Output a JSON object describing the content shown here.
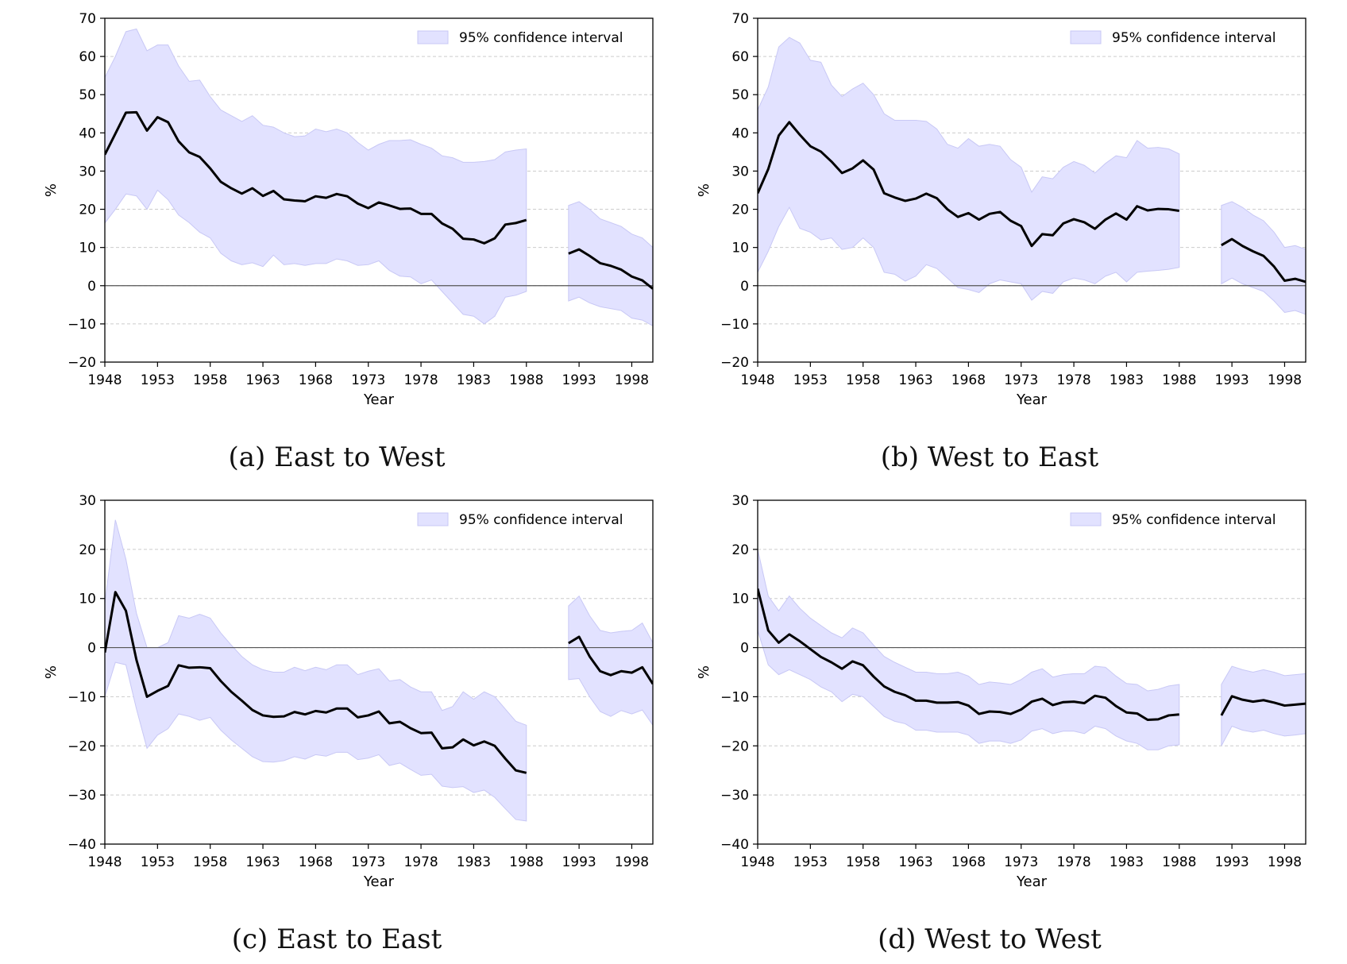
{
  "figure": {
    "panels": [
      {
        "caption": "(a) East to West"
      },
      {
        "caption": "(b) West to East"
      },
      {
        "caption": "(c) East to East"
      },
      {
        "caption": "(d) West to West"
      }
    ]
  },
  "chart_data": [
    {
      "type": "line",
      "caption": "(a) East to West",
      "xlabel": "Year",
      "ylabel": "%",
      "xlim": [
        1948,
        2000
      ],
      "ylim": [
        -20,
        70
      ],
      "yticks": [
        -20,
        -10,
        0,
        10,
        20,
        30,
        40,
        50,
        60,
        70
      ],
      "xticks": [
        "1948",
        "1953",
        "1958",
        "1963",
        "1968",
        "1973",
        "1978",
        "1983",
        "1988",
        "1993",
        "1998"
      ],
      "zero_line": true,
      "grid": "horizontal dashed",
      "legend": {
        "label": "95% confidence interval",
        "position": "top-right"
      },
      "colors": {
        "line": "#000000",
        "band": "#e2e2ff",
        "band_edge": "#c8c8f5",
        "grid": "#cccccc"
      },
      "series": [
        {
          "segment": 1,
          "x": [
            1948,
            1949,
            1950,
            1951,
            1952,
            1953,
            1954,
            1955,
            1956,
            1957,
            1958,
            1959,
            1960,
            1961,
            1962,
            1963,
            1964,
            1965,
            1966,
            1967,
            1968,
            1969,
            1970,
            1971,
            1972,
            1973,
            1974,
            1975,
            1976,
            1977,
            1978,
            1979,
            1980,
            1981,
            1982,
            1983,
            1984,
            1985,
            1986,
            1987,
            1988
          ],
          "y": [
            34.3,
            39.8,
            45.3,
            45.4,
            40.6,
            44.1,
            42.8,
            37.8,
            34.9,
            33.7,
            30.7,
            27.2,
            25.5,
            24.1,
            25.5,
            23.5,
            24.8,
            22.6,
            22.3,
            22.1,
            23.4,
            23.0,
            24.0,
            23.4,
            21.5,
            20.3,
            21.8,
            21.0,
            20.1,
            20.2,
            18.8,
            18.8,
            16.3,
            14.9,
            12.3,
            12.1,
            11.1,
            12.4,
            16.0,
            16.4,
            17.2
          ],
          "lower": [
            16.4,
            20.0,
            24.0,
            23.5,
            20.0,
            25.0,
            22.5,
            18.5,
            16.5,
            14.0,
            12.5,
            8.5,
            6.5,
            5.5,
            6.0,
            5.0,
            8.0,
            5.5,
            5.8,
            5.3,
            5.8,
            5.8,
            7.0,
            6.5,
            5.3,
            5.5,
            6.5,
            4.0,
            2.5,
            2.3,
            0.5,
            1.5,
            -1.5,
            -4.5,
            -7.5,
            -8.0,
            -10.0,
            -8.0,
            -3.0,
            -2.5,
            -1.5
          ],
          "upper": [
            54.5,
            60.0,
            66.5,
            67.2,
            61.5,
            63.0,
            63.0,
            57.5,
            53.5,
            53.8,
            49.5,
            46.0,
            44.5,
            43.0,
            44.5,
            42.0,
            41.5,
            40.0,
            39.0,
            39.2,
            41.0,
            40.3,
            41.0,
            40.0,
            37.5,
            35.5,
            37.0,
            38.0,
            38.0,
            38.2,
            37.0,
            36.0,
            34.0,
            33.5,
            32.3,
            32.3,
            32.5,
            33.0,
            35.0,
            35.5,
            35.8
          ]
        },
        {
          "segment": 2,
          "x": [
            1992,
            1993,
            1994,
            1995,
            1996,
            1997,
            1998,
            1999,
            2000
          ],
          "y": [
            8.4,
            9.5,
            7.8,
            5.9,
            5.2,
            4.2,
            2.4,
            1.4,
            -0.8
          ],
          "lower": [
            -4.0,
            -3.0,
            -4.5,
            -5.5,
            -6.0,
            -6.5,
            -8.5,
            -9.0,
            -10.5
          ],
          "upper": [
            21.0,
            22.0,
            20.0,
            17.5,
            16.5,
            15.5,
            13.5,
            12.5,
            10.0
          ]
        }
      ]
    },
    {
      "type": "line",
      "caption": "(b) West to East",
      "xlabel": "Year",
      "ylabel": "%",
      "xlim": [
        1948,
        2000
      ],
      "ylim": [
        -20,
        70
      ],
      "yticks": [
        -20,
        -10,
        0,
        10,
        20,
        30,
        40,
        50,
        60,
        70
      ],
      "xticks": [
        "1948",
        "1953",
        "1958",
        "1963",
        "1968",
        "1973",
        "1978",
        "1983",
        "1988",
        "1993",
        "1998"
      ],
      "zero_line": true,
      "grid": "horizontal dashed",
      "legend": {
        "label": "95% confidence interval",
        "position": "top-right"
      },
      "colors": {
        "line": "#000000",
        "band": "#e2e2ff",
        "band_edge": "#c8c8f5",
        "grid": "#cccccc"
      },
      "series": [
        {
          "segment": 1,
          "x": [
            1948,
            1949,
            1950,
            1951,
            1952,
            1953,
            1954,
            1955,
            1956,
            1957,
            1958,
            1959,
            1960,
            1961,
            1962,
            1963,
            1964,
            1965,
            1966,
            1967,
            1968,
            1969,
            1970,
            1971,
            1972,
            1973,
            1974,
            1975,
            1976,
            1977,
            1978,
            1979,
            1980,
            1981,
            1982,
            1983,
            1984,
            1985,
            1986,
            1987,
            1988
          ],
          "y": [
            24.2,
            30.5,
            39.3,
            42.8,
            39.5,
            36.5,
            35.1,
            32.5,
            29.5,
            30.7,
            32.8,
            30.4,
            24.2,
            23.1,
            22.2,
            22.8,
            24.1,
            22.9,
            20.0,
            18.0,
            19.0,
            17.3,
            18.8,
            19.3,
            17.0,
            15.6,
            10.4,
            13.5,
            13.2,
            16.3,
            17.4,
            16.6,
            14.9,
            17.3,
            18.9,
            17.3,
            20.8,
            19.7,
            20.1,
            20.0,
            19.6
          ],
          "lower": [
            3.5,
            9.0,
            15.5,
            20.5,
            15.0,
            14.0,
            12.0,
            12.5,
            9.5,
            10.0,
            12.5,
            10.0,
            3.5,
            3.0,
            1.2,
            2.5,
            5.5,
            4.5,
            2.0,
            -0.5,
            -1.0,
            -1.8,
            0.5,
            1.5,
            1.0,
            0.5,
            -3.8,
            -1.5,
            -2.0,
            1.0,
            2.0,
            1.5,
            0.5,
            2.5,
            3.5,
            1.0,
            3.5,
            3.8,
            4.0,
            4.3,
            4.8
          ],
          "upper": [
            46.0,
            52.0,
            62.5,
            65.0,
            63.5,
            59.0,
            58.5,
            52.5,
            49.5,
            51.5,
            53.0,
            50.0,
            45.0,
            43.3,
            43.3,
            43.3,
            43.0,
            41.0,
            37.0,
            36.0,
            38.5,
            36.5,
            37.0,
            36.5,
            33.0,
            31.0,
            24.5,
            28.5,
            28.0,
            31.0,
            32.5,
            31.5,
            29.5,
            32.0,
            34.0,
            33.5,
            38.0,
            36.0,
            36.2,
            35.8,
            34.5
          ]
        },
        {
          "segment": 2,
          "x": [
            1992,
            1993,
            1994,
            1995,
            1996,
            1997,
            1998,
            1999,
            2000
          ],
          "y": [
            10.6,
            12.2,
            10.4,
            9.0,
            7.8,
            5.0,
            1.3,
            1.8,
            1.0
          ],
          "lower": [
            0.5,
            2.0,
            0.5,
            -0.5,
            -1.5,
            -4.0,
            -7.0,
            -6.5,
            -7.5
          ],
          "upper": [
            21.0,
            22.0,
            20.5,
            18.5,
            17.0,
            14.0,
            10.0,
            10.5,
            9.5
          ]
        }
      ]
    },
    {
      "type": "line",
      "caption": "(c) East to East",
      "xlabel": "Year",
      "ylabel": "%",
      "xlim": [
        1948,
        2000
      ],
      "ylim": [
        -40,
        30
      ],
      "yticks": [
        -40,
        -30,
        -20,
        -10,
        0,
        10,
        20,
        30
      ],
      "xticks": [
        "1948",
        "1953",
        "1958",
        "1963",
        "1968",
        "1973",
        "1978",
        "1983",
        "1988",
        "1993",
        "1998"
      ],
      "zero_line": true,
      "grid": "horizontal dashed",
      "legend": {
        "label": "95% confidence interval",
        "position": "top-right"
      },
      "colors": {
        "line": "#000000",
        "band": "#e2e2ff",
        "band_edge": "#c8c8f5",
        "grid": "#cccccc"
      },
      "series": [
        {
          "segment": 1,
          "x": [
            1948,
            1949,
            1950,
            1951,
            1952,
            1953,
            1954,
            1955,
            1956,
            1957,
            1958,
            1959,
            1960,
            1961,
            1962,
            1963,
            1964,
            1965,
            1966,
            1967,
            1968,
            1969,
            1970,
            1971,
            1972,
            1973,
            1974,
            1975,
            1976,
            1977,
            1978,
            1979,
            1980,
            1981,
            1982,
            1983,
            1984,
            1985,
            1986,
            1987,
            1988
          ],
          "y": [
            -1.0,
            11.3,
            7.5,
            -2.5,
            -10.0,
            -8.8,
            -7.8,
            -3.6,
            -4.1,
            -4.0,
            -4.2,
            -6.8,
            -9.0,
            -10.8,
            -12.7,
            -13.8,
            -14.1,
            -14.0,
            -13.1,
            -13.6,
            -12.9,
            -13.2,
            -12.4,
            -12.4,
            -14.2,
            -13.8,
            -13.0,
            -15.4,
            -15.1,
            -16.4,
            -17.4,
            -17.3,
            -20.5,
            -20.3,
            -18.7,
            -19.9,
            -19.1,
            -20.0,
            -22.6,
            -25.0,
            -25.5
          ],
          "lower": [
            -10.0,
            -3.0,
            -3.5,
            -12.5,
            -20.5,
            -17.8,
            -16.5,
            -13.5,
            -14.0,
            -14.8,
            -14.2,
            -16.8,
            -18.8,
            -20.5,
            -22.2,
            -23.2,
            -23.3,
            -23.0,
            -22.2,
            -22.7,
            -21.8,
            -22.1,
            -21.3,
            -21.3,
            -22.8,
            -22.5,
            -21.8,
            -24.0,
            -23.5,
            -24.8,
            -26.0,
            -25.8,
            -28.2,
            -28.5,
            -28.3,
            -29.5,
            -29.0,
            -30.5,
            -32.8,
            -35.0,
            -35.3
          ],
          "upper": [
            9.0,
            26.0,
            18.0,
            7.0,
            0.0,
            0.0,
            1.0,
            6.5,
            6.0,
            6.8,
            6.0,
            3.0,
            0.5,
            -1.8,
            -3.5,
            -4.5,
            -5.0,
            -5.0,
            -4.0,
            -4.7,
            -4.0,
            -4.5,
            -3.5,
            -3.5,
            -5.5,
            -4.8,
            -4.3,
            -6.8,
            -6.5,
            -8.0,
            -9.0,
            -9.0,
            -12.8,
            -12.0,
            -9.0,
            -10.5,
            -9.0,
            -10.0,
            -12.5,
            -15.0,
            -15.8
          ]
        },
        {
          "segment": 2,
          "x": [
            1992,
            1993,
            1994,
            1995,
            1996,
            1997,
            1998,
            1999,
            2000
          ],
          "y": [
            0.9,
            2.2,
            -1.8,
            -4.8,
            -5.6,
            -4.8,
            -5.1,
            -4.0,
            -7.4
          ],
          "lower": [
            -6.5,
            -6.3,
            -10.0,
            -13.0,
            -14.0,
            -12.8,
            -13.5,
            -12.7,
            -15.8
          ],
          "upper": [
            8.5,
            10.5,
            6.5,
            3.5,
            3.0,
            3.3,
            3.5,
            5.0,
            1.0
          ]
        }
      ]
    },
    {
      "type": "line",
      "caption": "(d) West to West",
      "xlabel": "Year",
      "ylabel": "%",
      "xlim": [
        1948,
        2000
      ],
      "ylim": [
        -40,
        30
      ],
      "yticks": [
        -40,
        -30,
        -20,
        -10,
        0,
        10,
        20,
        30
      ],
      "xticks": [
        "1948",
        "1953",
        "1958",
        "1963",
        "1968",
        "1973",
        "1978",
        "1983",
        "1988",
        "1993",
        "1998"
      ],
      "zero_line": true,
      "grid": "horizontal dashed",
      "legend": {
        "label": "95% confidence interval",
        "position": "top-right"
      },
      "colors": {
        "line": "#000000",
        "band": "#e2e2ff",
        "band_edge": "#c8c8f5",
        "grid": "#cccccc"
      },
      "series": [
        {
          "segment": 1,
          "x": [
            1948,
            1949,
            1950,
            1951,
            1952,
            1953,
            1954,
            1955,
            1956,
            1957,
            1958,
            1959,
            1960,
            1961,
            1962,
            1963,
            1964,
            1965,
            1966,
            1967,
            1968,
            1969,
            1970,
            1971,
            1972,
            1973,
            1974,
            1975,
            1976,
            1977,
            1978,
            1979,
            1980,
            1981,
            1982,
            1983,
            1984,
            1985,
            1986,
            1987,
            1988
          ],
          "y": [
            12.0,
            3.5,
            1.0,
            2.7,
            1.3,
            -0.3,
            -1.9,
            -3.0,
            -4.3,
            -2.8,
            -3.6,
            -5.9,
            -7.9,
            -9.0,
            -9.7,
            -10.8,
            -10.8,
            -11.2,
            -11.2,
            -11.1,
            -11.8,
            -13.5,
            -13.0,
            -13.1,
            -13.5,
            -12.6,
            -11.0,
            -10.4,
            -11.7,
            -11.1,
            -11.0,
            -11.3,
            -9.8,
            -10.2,
            -11.9,
            -13.2,
            -13.4,
            -14.7,
            -14.6,
            -13.8,
            -13.6
          ],
          "lower": [
            3.5,
            -3.5,
            -5.5,
            -4.5,
            -5.5,
            -6.5,
            -8.0,
            -9.0,
            -11.0,
            -9.5,
            -10.0,
            -12.0,
            -14.0,
            -15.0,
            -15.5,
            -16.8,
            -16.8,
            -17.2,
            -17.2,
            -17.2,
            -17.8,
            -19.5,
            -19.0,
            -19.0,
            -19.5,
            -18.8,
            -17.0,
            -16.5,
            -17.5,
            -17.0,
            -17.0,
            -17.5,
            -16.0,
            -16.5,
            -18.0,
            -19.0,
            -19.5,
            -20.8,
            -20.8,
            -20.0,
            -19.8
          ],
          "upper": [
            20.0,
            10.5,
            7.5,
            10.5,
            8.0,
            6.0,
            4.5,
            3.0,
            2.0,
            4.0,
            3.0,
            0.5,
            -1.8,
            -3.0,
            -4.0,
            -5.0,
            -5.0,
            -5.3,
            -5.3,
            -5.0,
            -5.8,
            -7.5,
            -7.0,
            -7.2,
            -7.5,
            -6.5,
            -5.0,
            -4.3,
            -6.0,
            -5.5,
            -5.3,
            -5.3,
            -3.8,
            -4.0,
            -5.8,
            -7.3,
            -7.5,
            -8.8,
            -8.5,
            -7.8,
            -7.5
          ]
        },
        {
          "segment": 2,
          "x": [
            1992,
            1993,
            1994,
            1995,
            1996,
            1997,
            1998,
            1999,
            2000
          ],
          "y": [
            -13.8,
            -9.9,
            -10.6,
            -11.0,
            -10.7,
            -11.2,
            -11.8,
            -11.6,
            -11.4
          ],
          "lower": [
            -20.0,
            -16.0,
            -16.8,
            -17.2,
            -16.8,
            -17.5,
            -18.0,
            -17.8,
            -17.5
          ],
          "upper": [
            -7.5,
            -3.8,
            -4.5,
            -5.0,
            -4.5,
            -5.0,
            -5.7,
            -5.5,
            -5.3
          ]
        }
      ]
    }
  ]
}
